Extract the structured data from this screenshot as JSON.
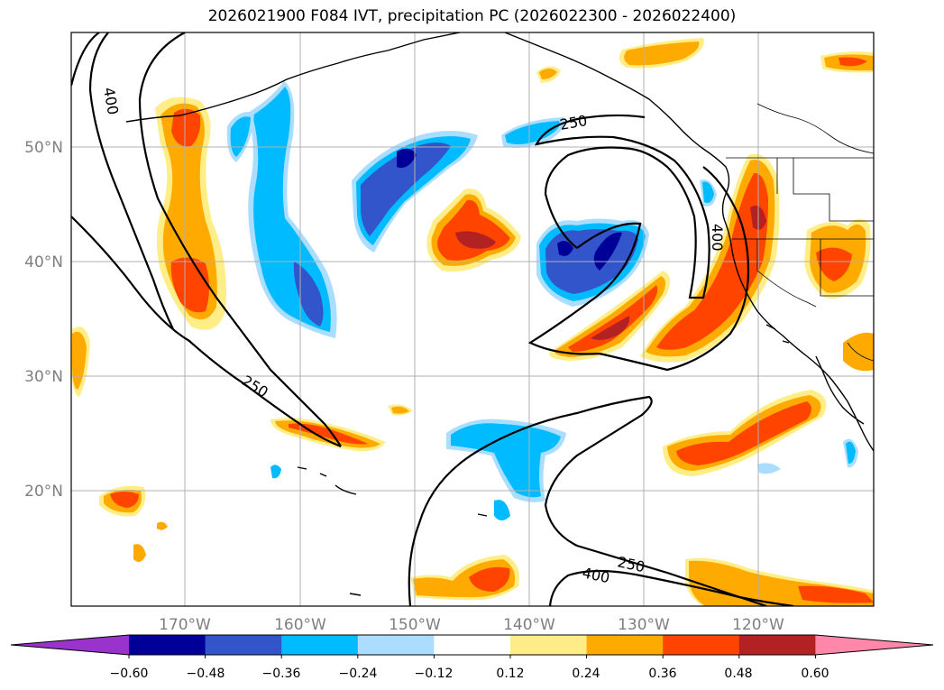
{
  "title": "2026021900 F084 IVT, precipitation PC (2026022300 - 2026022400)",
  "map": {
    "lon_labels": [
      "170°W",
      "160°W",
      "150°W",
      "140°W",
      "130°W",
      "120°W"
    ],
    "lat_labels": [
      "50°N",
      "40°N",
      "30°N",
      "20°N"
    ],
    "contour_labels": [
      "400",
      "250",
      "250",
      "400",
      "250",
      "400"
    ]
  },
  "colorbar": {
    "tick_labels": [
      "−0.60",
      "−0.48",
      "−0.36",
      "−0.24",
      "−0.12",
      "0.12",
      "0.24",
      "0.36",
      "0.48",
      "0.60"
    ],
    "colors": [
      "#9933cc",
      "#000099",
      "#3355cc",
      "#00bbff",
      "#aaddff",
      "#ffffff",
      "#ffee88",
      "#ffaa00",
      "#ff4400",
      "#b22222",
      "#ff88aa"
    ]
  }
}
